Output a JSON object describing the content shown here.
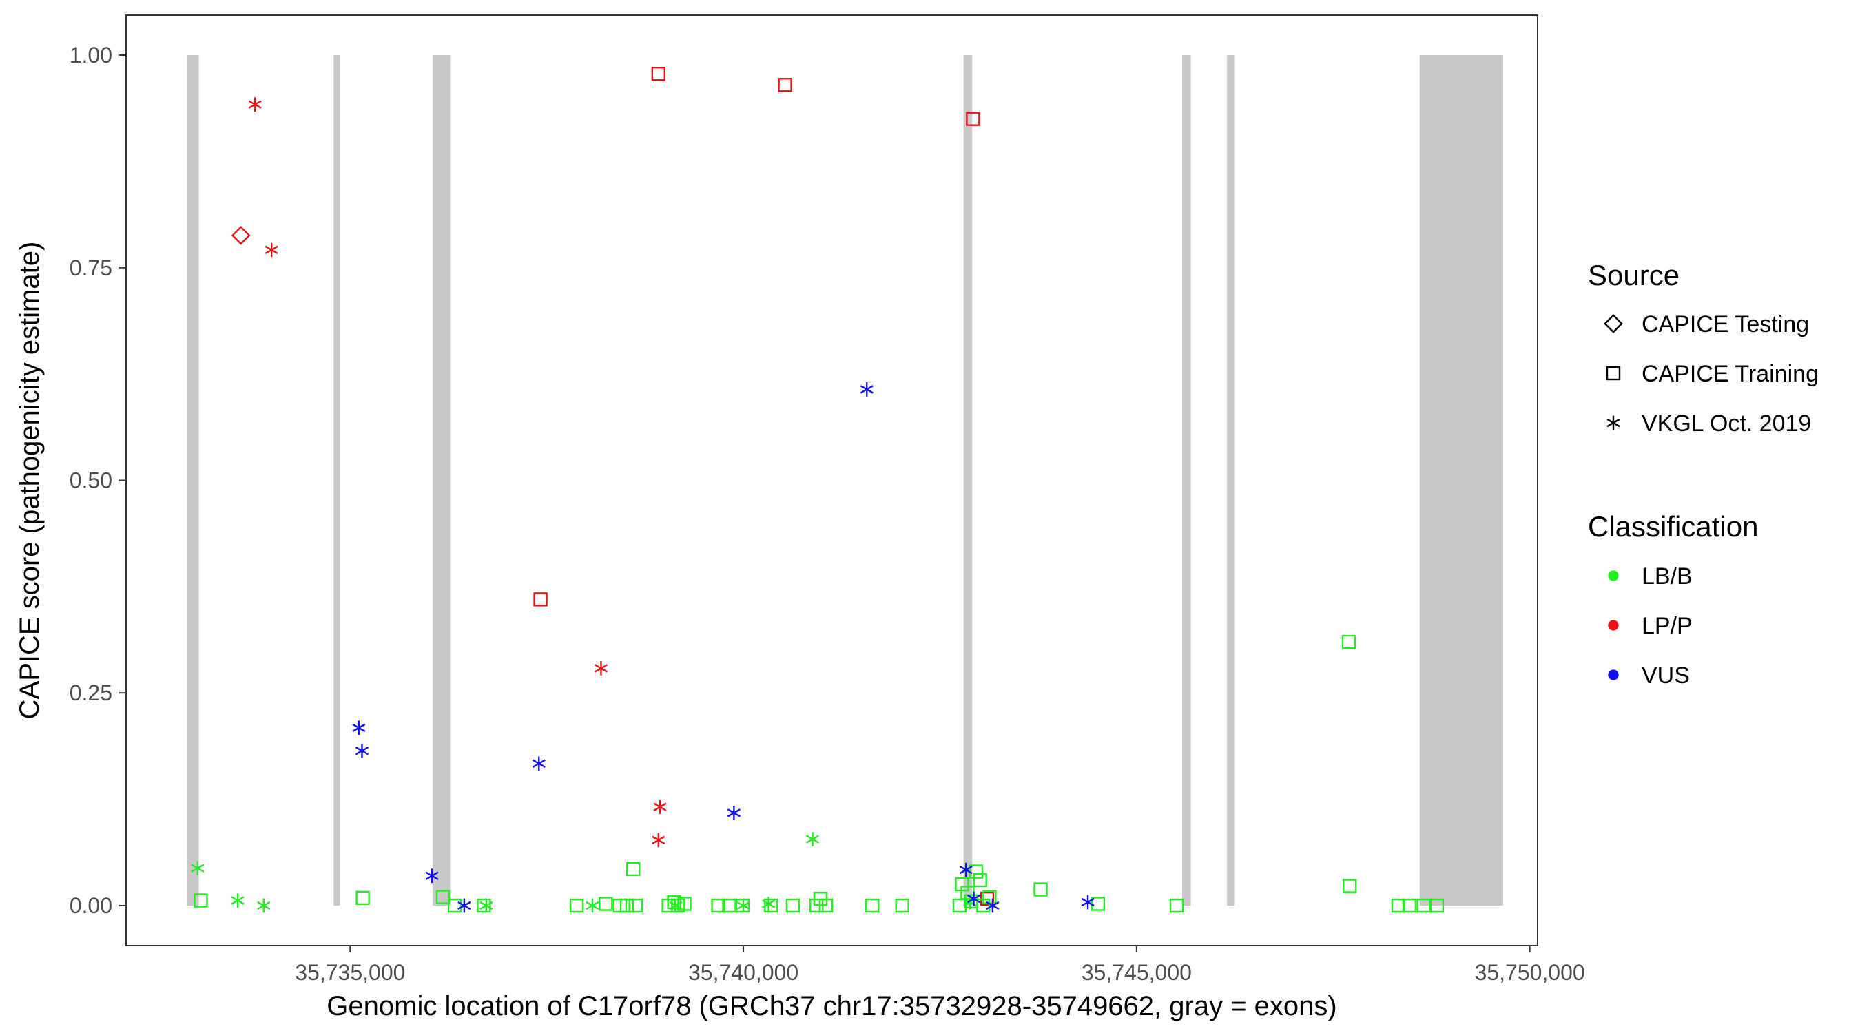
{
  "chart_data": {
    "type": "scatter",
    "xlabel": "Genomic location of C17orf78 (GRCh37 chr17:35732928-35749662, gray = exons)",
    "ylabel": "CAPICE score (pathogenicity estimate)",
    "xlim": [
      32150,
      50100
    ],
    "ylim": [
      -0.047,
      1.047
    ],
    "x_offset": 35700000,
    "x_ticks": [
      {
        "value": 35000,
        "label": "35,735,000"
      },
      {
        "value": 40000,
        "label": "35,740,000"
      },
      {
        "value": 45000,
        "label": "35,745,000"
      },
      {
        "value": 50000,
        "label": "35,750,000"
      }
    ],
    "y_ticks": [
      {
        "value": 0.0,
        "label": "0.00"
      },
      {
        "value": 0.25,
        "label": "0.25"
      },
      {
        "value": 0.5,
        "label": "0.50"
      },
      {
        "value": 0.75,
        "label": "0.75"
      },
      {
        "value": 1.0,
        "label": "1.00"
      }
    ],
    "grid": false,
    "exons": [
      [
        32928,
        33075
      ],
      [
        34790,
        34870
      ],
      [
        36050,
        36270
      ],
      [
        42800,
        42910
      ],
      [
        45580,
        45690
      ],
      [
        46150,
        46250
      ],
      [
        48600,
        49662
      ]
    ],
    "colors": {
      "LB/B": "#22ee22",
      "LP/P": "#ee1111",
      "VUS": "#1010ee",
      "exon": "#c8c8c8"
    },
    "legend": {
      "position": "right",
      "source_title": "Source",
      "source_items": [
        {
          "label": "CAPICE Testing",
          "shape": "diamond"
        },
        {
          "label": "CAPICE Training",
          "shape": "square"
        },
        {
          "label": "VKGL Oct. 2019",
          "shape": "asterisk"
        }
      ],
      "class_title": "Classification",
      "class_items": [
        {
          "label": "LB/B",
          "color": "#22ee22"
        },
        {
          "label": "LP/P",
          "color": "#ee1111"
        },
        {
          "label": "VUS",
          "color": "#1010ee"
        }
      ]
    },
    "series": [
      {
        "source": "CAPICE Testing",
        "class": "LP/P",
        "points": [
          [
            33610,
            0.788
          ]
        ]
      },
      {
        "source": "CAPICE Training",
        "class": "LP/P",
        "points": [
          [
            37420,
            0.36
          ],
          [
            38920,
            0.978
          ],
          [
            40530,
            0.965
          ],
          [
            42920,
            0.925
          ],
          [
            43100,
            0.008
          ]
        ]
      },
      {
        "source": "CAPICE Training",
        "class": "LB/B",
        "points": [
          [
            33100,
            0.006
          ],
          [
            35160,
            0.009
          ],
          [
            36180,
            0.01
          ],
          [
            36330,
            0.0
          ],
          [
            36700,
            0.0
          ],
          [
            37880,
            0.0
          ],
          [
            38250,
            0.002
          ],
          [
            38430,
            0.0
          ],
          [
            38520,
            0.0
          ],
          [
            38600,
            0.043
          ],
          [
            38630,
            0.0
          ],
          [
            39050,
            0.0
          ],
          [
            39120,
            0.004
          ],
          [
            39170,
            0.0
          ],
          [
            39250,
            0.002
          ],
          [
            39680,
            0.0
          ],
          [
            39820,
            0.0
          ],
          [
            39990,
            0.0
          ],
          [
            40350,
            0.0
          ],
          [
            40630,
            0.0
          ],
          [
            40930,
            0.0
          ],
          [
            40980,
            0.008
          ],
          [
            41050,
            0.0
          ],
          [
            41640,
            0.0
          ],
          [
            42020,
            0.0
          ],
          [
            42750,
            0.0
          ],
          [
            42780,
            0.025
          ],
          [
            42850,
            0.015
          ],
          [
            42900,
            0.005
          ],
          [
            42960,
            0.04
          ],
          [
            43010,
            0.03
          ],
          [
            43050,
            0.0
          ],
          [
            43130,
            0.01
          ],
          [
            43780,
            0.019
          ],
          [
            44510,
            0.002
          ],
          [
            45510,
            0.0
          ],
          [
            47700,
            0.31
          ],
          [
            47710,
            0.023
          ],
          [
            48330,
            0.0
          ],
          [
            48470,
            0.0
          ],
          [
            48650,
            0.0
          ],
          [
            48820,
            0.0
          ]
        ]
      },
      {
        "source": "VKGL Oct. 2019",
        "class": "LP/P",
        "points": [
          [
            33790,
            0.942
          ],
          [
            34000,
            0.771
          ],
          [
            38190,
            0.279
          ],
          [
            38940,
            0.116
          ],
          [
            38920,
            0.077
          ]
        ]
      },
      {
        "source": "VKGL Oct. 2019",
        "class": "LB/B",
        "points": [
          [
            33060,
            0.044
          ],
          [
            33570,
            0.006
          ],
          [
            33900,
            0.0
          ],
          [
            36730,
            0.0
          ],
          [
            38080,
            0.0
          ],
          [
            39140,
            0.0
          ],
          [
            40000,
            0.0
          ],
          [
            40320,
            0.002
          ],
          [
            40880,
            0.078
          ],
          [
            42880,
            0.004
          ]
        ]
      },
      {
        "source": "VKGL Oct. 2019",
        "class": "VUS",
        "points": [
          [
            35110,
            0.209
          ],
          [
            35150,
            0.182
          ],
          [
            36040,
            0.035
          ],
          [
            36450,
            0.0
          ],
          [
            37400,
            0.167
          ],
          [
            39880,
            0.109
          ],
          [
            41570,
            0.607
          ],
          [
            42830,
            0.042
          ],
          [
            42930,
            0.008
          ],
          [
            43170,
            0.0
          ],
          [
            44380,
            0.004
          ]
        ]
      }
    ]
  }
}
